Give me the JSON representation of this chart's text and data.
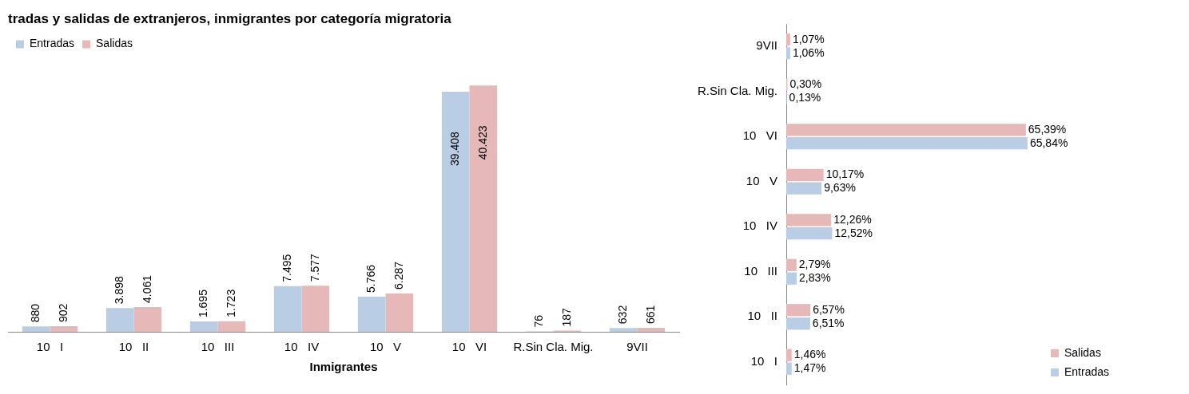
{
  "chart_data": [
    {
      "type": "bar",
      "title": "tradas y salidas de extranjeros, inmigrantes por categoría migratoria",
      "xlabel": "Inmigrantes",
      "categories": [
        "10   I",
        "10   II",
        "10   III",
        "10   IV",
        "10   V",
        "10   VI",
        "R.Sin Cla. Mig.",
        "9VII"
      ],
      "legend": "top left",
      "tick_labels": "x",
      "series": [
        {
          "name": "Entradas",
          "color": "#b9cde5",
          "values": [
            880,
            3898,
            1695,
            7495,
            5766,
            39408,
            76,
            632
          ],
          "value_labels": [
            "880",
            "3.898",
            "1.695",
            "7.495",
            "5.766",
            "39.408",
            "76",
            "632"
          ]
        },
        {
          "name": "Salidas",
          "color": "#e6b9b8",
          "values": [
            902,
            4061,
            1723,
            7577,
            6287,
            40423,
            187,
            661
          ],
          "value_labels": [
            "902",
            "4.061",
            "1.723",
            "7.577",
            "6.287",
            "40.423",
            "187",
            "661"
          ]
        }
      ]
    },
    {
      "type": "bar",
      "orientation": "horizontal",
      "categories": [
        "9VII",
        "R.Sin Cla. Mig.",
        "10   VI",
        "10   V",
        "10   IV",
        "10   III",
        "10   II",
        "10   I"
      ],
      "legend": "right",
      "tick_labels": "y",
      "series": [
        {
          "name": "Salidas",
          "color": "#e6b9b8",
          "values": [
            1.07,
            0.3,
            65.39,
            10.17,
            12.26,
            2.79,
            6.57,
            1.46
          ],
          "value_labels": [
            "1,07%",
            "0,30%",
            "65,39%",
            "10,17%",
            "12,26%",
            "2,79%",
            "6,57%",
            "1,46%"
          ]
        },
        {
          "name": "Entradas",
          "color": "#b9cde5",
          "values": [
            1.06,
            0.13,
            65.84,
            9.63,
            12.52,
            2.83,
            6.51,
            1.47
          ],
          "value_labels": [
            "1,06%",
            "0,13%",
            "65,84%",
            "9,63%",
            "12,52%",
            "2,83%",
            "6,51%",
            "1,47%"
          ]
        }
      ]
    }
  ]
}
